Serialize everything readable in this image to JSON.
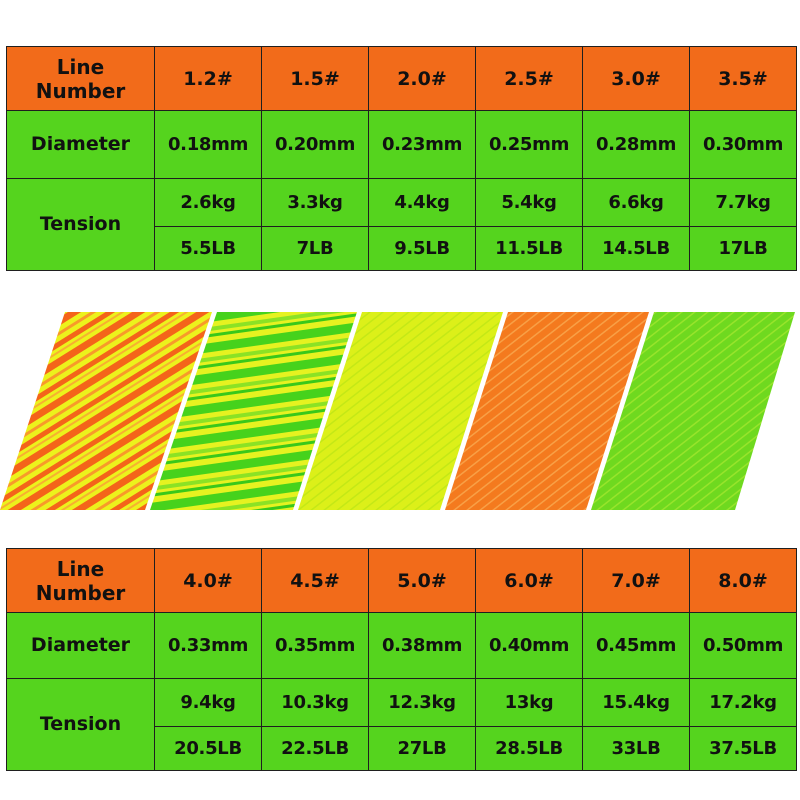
{
  "top_table": {
    "line_number_label": "Line\nNumber",
    "diameter_label": "Diameter",
    "tension_label": "Tension",
    "line_numbers": [
      "1.2#",
      "1.5#",
      "2.0#",
      "2.5#",
      "3.0#",
      "3.5#"
    ],
    "diameters": [
      "0.18mm",
      "0.20mm",
      "0.23mm",
      "0.25mm",
      "0.28mm",
      "0.30mm"
    ],
    "tension_kg": [
      "2.6kg",
      "3.3kg",
      "4.4kg",
      "5.4kg",
      "6.6kg",
      "7.7kg"
    ],
    "tension_lb": [
      "5.5LB",
      "7LB",
      "9.5LB",
      "11.5LB",
      "14.5LB",
      "17LB"
    ]
  },
  "bottom_table": {
    "line_number_label": "Line\nNumber",
    "diameter_label": "Diameter",
    "tension_label": "Tension",
    "line_numbers": [
      "4.0#",
      "4.5#",
      "5.0#",
      "6.0#",
      "7.0#",
      "8.0#"
    ],
    "diameters": [
      "0.33mm",
      "0.35mm",
      "0.38mm",
      "0.40mm",
      "0.45mm",
      "0.50mm"
    ],
    "tension_kg": [
      "9.4kg",
      "10.3kg",
      "12.3kg",
      "13kg",
      "15.4kg",
      "17.2kg"
    ],
    "tension_lb": [
      "20.5LB",
      "22.5LB",
      "27LB",
      "28.5LB",
      "33LB",
      "37.5LB"
    ]
  },
  "colors": {
    "header_orange": "#f26b1a",
    "row_green": "#55d41e",
    "swatch_yellow": "#e8f21a",
    "swatch_green": "#3fd11c",
    "swatch_orange": "#f47a1e"
  },
  "swatches": [
    "yellow-orange-stripe",
    "green-yellow-stripe",
    "yellow",
    "orange",
    "green"
  ]
}
